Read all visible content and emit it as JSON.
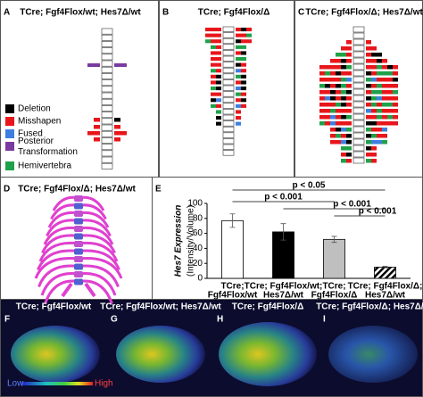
{
  "panels": {
    "A": {
      "letter": "A",
      "title": "TCre; Fgf4Flox/wt; Hes7Δ/wt"
    },
    "B": {
      "letter": "B",
      "title": "TCre; Fgf4Flox/Δ"
    },
    "C": {
      "letter": "C",
      "title": "TCre; Fgf4Flox/Δ; Hes7Δ/wt"
    },
    "D": {
      "letter": "D",
      "title": "TCre; Fgf4Flox/Δ; Hes7Δ/wt"
    },
    "E": {
      "letter": "E"
    },
    "F": {
      "letter": "F",
      "title": "TCre; Fgf4Flox/wt"
    },
    "G": {
      "letter": "G",
      "title": "TCre; Fgf4Flox/wt; Hes7Δ/wt"
    },
    "H": {
      "letter": "H",
      "title": "TCre; Fgf4Flox/Δ"
    },
    "I": {
      "letter": "I",
      "title": "TCre; Fgf4Flox/Δ; Hes7Δ/wt"
    }
  },
  "legend": [
    {
      "label": "Deletion",
      "color": "#000000"
    },
    {
      "label": "Misshapen",
      "color": "#e8161b"
    },
    {
      "label": "Fused",
      "color": "#3d7fe0"
    },
    {
      "label": "Posterior Transformation",
      "color": "#7a3ba0"
    },
    {
      "label": "Hemivertebra",
      "color": "#1fa14a"
    }
  ],
  "colorbar": {
    "low": "Low",
    "high": "High"
  },
  "chart_data": {
    "type": "bar",
    "ylabel": "Hes7 Expression",
    "ylabel2": "(Intensity/Volume)",
    "categories": [
      [
        "TCre;",
        "Fgf4Flox/wt"
      ],
      [
        "TCre; Fgf4Flox/wt;",
        "Hes7Δ/wt"
      ],
      [
        "TCre;",
        "Fgf4Flox/Δ"
      ],
      [
        "TCre; Fgf4Flox/Δ;",
        "Hes7Δ/wt"
      ]
    ],
    "values": [
      77,
      62,
      52,
      15
    ],
    "errors": [
      9,
      11,
      4,
      1
    ],
    "colors": [
      "#ffffff",
      "#000000",
      "#bfbfbf",
      "#ffffff"
    ],
    "hatch": [
      false,
      false,
      false,
      true
    ],
    "ylim": [
      0,
      100
    ],
    "yticks": [
      0,
      20,
      40,
      60,
      80,
      100
    ],
    "annotations": [
      "p < 0.05",
      "p < 0.001",
      "p < 0.001",
      "p < 0.001"
    ]
  }
}
